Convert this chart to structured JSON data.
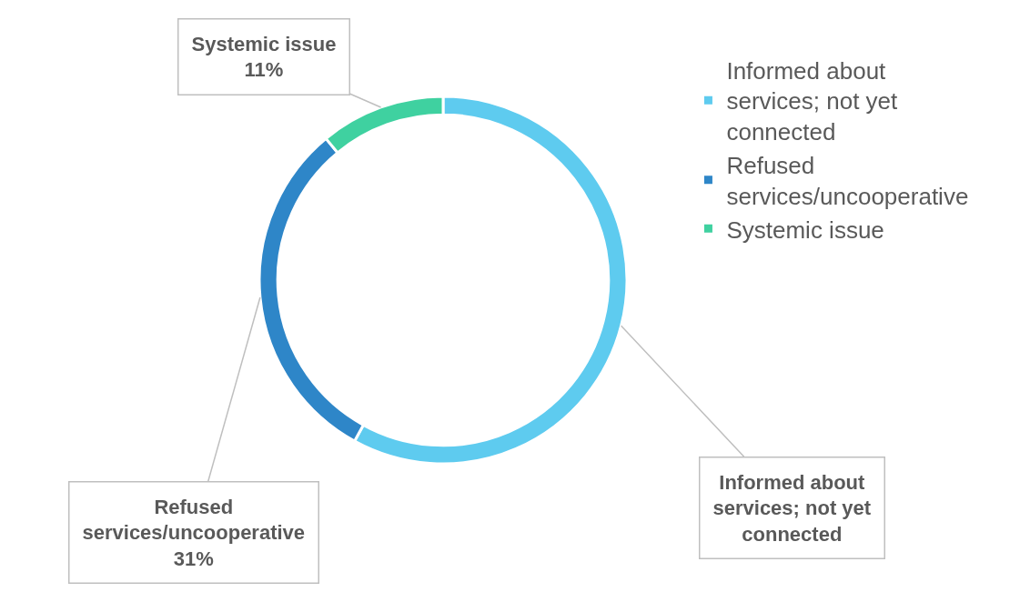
{
  "chart_data": {
    "type": "donut",
    "categories": [
      "Informed about services; not yet connected",
      "Refused services/uncooperative",
      "Systemic issue"
    ],
    "values": [
      58,
      31,
      11
    ],
    "value_labels": [
      null,
      "31%",
      "11%"
    ],
    "colors": [
      "#5ecbef",
      "#2e86c8",
      "#3fd1a0"
    ],
    "legend": "top right"
  }
}
